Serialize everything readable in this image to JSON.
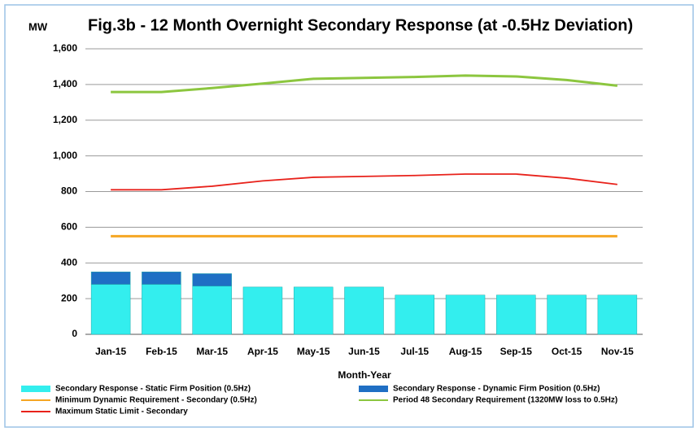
{
  "chart_data": {
    "type": "combo",
    "title": "Fig.3b - 12 Month Overnight Secondary Response (at -0.5Hz Deviation)",
    "y_label": "MW",
    "x_label": "Month-Year",
    "categories": [
      "Jan-15",
      "Feb-15",
      "Mar-15",
      "Apr-15",
      "May-15",
      "Jun-15",
      "Jul-15",
      "Aug-15",
      "Sep-15",
      "Oct-15",
      "Nov-15"
    ],
    "ylim": [
      0,
      1600
    ],
    "yticks": [
      0,
      200,
      400,
      600,
      800,
      {
        "value": 1000,
        "label": "1,000"
      },
      {
        "value": 1200,
        "label": "1,200"
      },
      {
        "value": 1400,
        "label": "1,400"
      },
      {
        "value": 1600,
        "label": "1,600"
      }
    ],
    "grid": true,
    "series": [
      {
        "name": "Secondary Response - Static Firm Position (0.5Hz)",
        "type": "bar",
        "color": "#33eeee",
        "values": [
          280,
          280,
          270,
          265,
          265,
          265,
          220,
          220,
          220,
          220,
          220
        ]
      },
      {
        "name": "Secondary Response - Dynamic Firm Position (0.5Hz)",
        "type": "bar",
        "color": "#1f6fc4",
        "values": [
          70,
          70,
          70,
          0,
          0,
          0,
          0,
          0,
          0,
          0,
          0
        ]
      },
      {
        "name": "Minimum Dynamic Requirement - Secondary (0.5Hz)",
        "type": "line",
        "color": "#f5a623",
        "values": [
          550,
          550,
          550,
          550,
          550,
          550,
          550,
          550,
          550,
          550,
          550
        ]
      },
      {
        "name": "Period 48 Secondary Requirement (1320MW loss to 0.5Hz)",
        "type": "line",
        "color": "#8cc63f",
        "values": [
          1358,
          1358,
          1380,
          1405,
          1432,
          1437,
          1442,
          1450,
          1445,
          1425,
          1393
        ]
      },
      {
        "name": "Maximum Static Limit - Secondary",
        "type": "line",
        "color": "#e8221b",
        "values": [
          810,
          810,
          830,
          860,
          880,
          885,
          890,
          898,
          898,
          875,
          840
        ]
      }
    ]
  }
}
